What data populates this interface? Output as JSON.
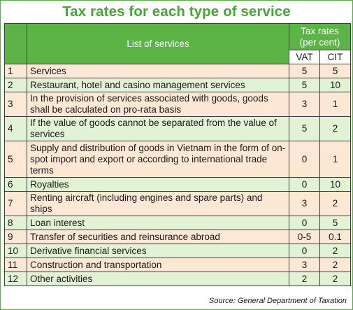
{
  "title": "Tax rates for each type of service",
  "header": {
    "list_label": "List of services",
    "rates_label_line1": "Tax rates",
    "rates_label_line2": "(per cent)",
    "vat_label": "VAT",
    "cit_label": "CIT"
  },
  "rows": [
    {
      "no": "1",
      "service": "Services",
      "vat": "5",
      "cit": "5"
    },
    {
      "no": "2",
      "service": "Restaurant, hotel and casino management services",
      "vat": "5",
      "cit": "10"
    },
    {
      "no": "3",
      "service": "In the provision of services associated with goods, goods shall be calculated on pro-rata basis",
      "vat": "3",
      "cit": "1"
    },
    {
      "no": "4",
      "service": "If the value of goods cannot be separated from the value of services",
      "vat": "5",
      "cit": "2"
    },
    {
      "no": "5",
      "service": "Supply and distribution of goods in Vietnam in the form of on-spot import and export or according to international trade terms",
      "vat": "0",
      "cit": "1"
    },
    {
      "no": "6",
      "service": "Royalties",
      "vat": "0",
      "cit": "10"
    },
    {
      "no": "7",
      "service": "Renting aircraft (including engines and spare parts) and ships",
      "vat": "3",
      "cit": "2"
    },
    {
      "no": "8",
      "service": "Loan interest",
      "vat": "0",
      "cit": "5"
    },
    {
      "no": "9",
      "service": "Transfer of securities and reinsurance abroad",
      "vat": "0-5",
      "cit": "0.1"
    },
    {
      "no": "10",
      "service": "Derivative financial services",
      "vat": "0",
      "cit": "2"
    },
    {
      "no": "11",
      "service": "Construction and transportation",
      "vat": "3",
      "cit": "2"
    },
    {
      "no": "12",
      "service": "Other activities",
      "vat": "2",
      "cit": "2"
    }
  ],
  "source": "Source: General Department of Taxation",
  "colors": {
    "title": "#4aa338",
    "header_bg": "#5cb346",
    "row_peach": "#fde7d5",
    "row_mint": "#e2f2d4"
  }
}
